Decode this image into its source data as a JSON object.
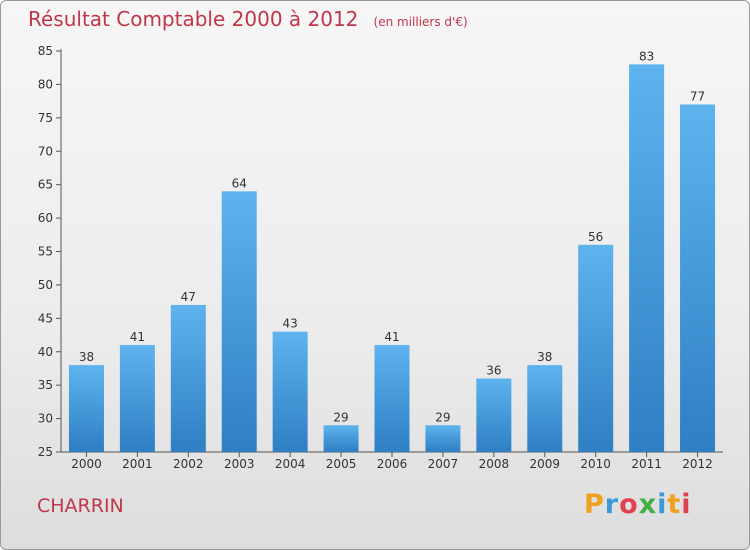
{
  "chart_data": {
    "type": "bar",
    "title": "Résultat Comptable 2000 à 2012",
    "subtitle": "(en milliers d'€)",
    "categories": [
      "2000",
      "2001",
      "2002",
      "2003",
      "2004",
      "2005",
      "2006",
      "2007",
      "2008",
      "2009",
      "2010",
      "2011",
      "2012"
    ],
    "values": [
      38,
      41,
      47,
      64,
      43,
      29,
      41,
      29,
      36,
      38,
      56,
      83,
      77
    ],
    "ylim": [
      25,
      85
    ],
    "yticks": [
      25,
      30,
      35,
      40,
      45,
      50,
      55,
      60,
      65,
      70,
      75,
      80,
      85
    ],
    "xlabel": "",
    "ylabel": "",
    "grid": false,
    "colors": {
      "bar_light": "#5eb3ee",
      "bar_dark": "#2e7fc3",
      "title": "#c0364a",
      "text": "#333333"
    }
  },
  "footer": {
    "town": "CHARRIN",
    "logo": "Proxiti",
    "logo_colors": [
      "#f0a020",
      "#3a9ad9",
      "#e04050",
      "#40b040",
      "#3a9ad9",
      "#f0a020",
      "#e04050"
    ]
  }
}
